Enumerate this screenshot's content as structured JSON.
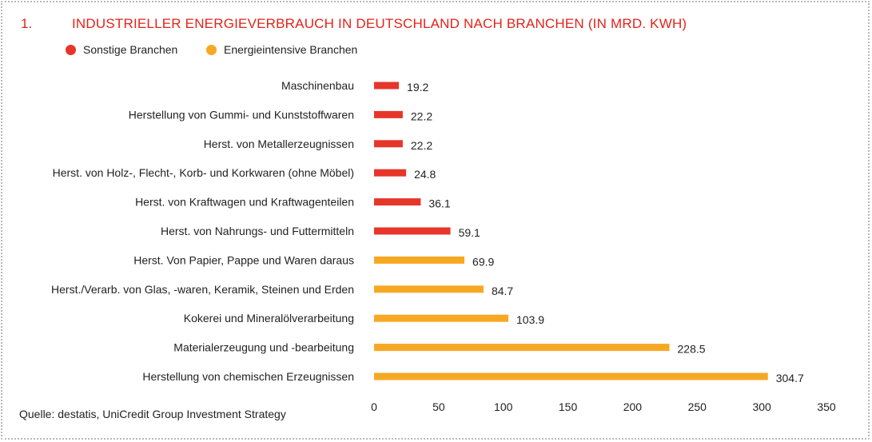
{
  "header": {
    "number": "1.",
    "title": "INDUSTRIELLER ENERGIEVERBRAUCH IN DEUTSCHLAND NACH BRANCHEN (IN MRD. KWH)"
  },
  "legend": [
    {
      "label": "Sonstige Branchen",
      "color": "#e8352a"
    },
    {
      "label": "Energieintensive Branchen",
      "color": "#f7a823"
    }
  ],
  "source": "Quelle: destatis, UniCredit Group Investment Strategy",
  "chart_data": {
    "type": "bar",
    "orientation": "horizontal",
    "categories": [
      "Maschinenbau",
      "Herstellung von Gummi- und Kunststoffwaren",
      "Herst. von Metallerzeugnissen",
      "Herst. von Holz-, Flecht-, Korb- und Korkwaren (ohne Möbel)",
      "Herst. von Kraftwagen und Kraftwagenteilen",
      "Herst. von Nahrungs- und Futtermitteln",
      "Herst. Von Papier, Pappe und Waren daraus",
      "Herst./Verarb. von Glas, -waren, Keramik, Steinen und Erden",
      "Kokerei und Mineralölverarbeitung",
      "Materialerzeugung und -bearbeitung",
      "Herstellung von chemischen Erzeugnissen"
    ],
    "values": [
      19.2,
      22.2,
      22.2,
      24.8,
      36.1,
      59.1,
      69.9,
      84.7,
      103.9,
      228.5,
      304.7
    ],
    "value_labels": [
      "19.2",
      "22.2",
      "22.2",
      "24.8",
      "36.1",
      "59.1",
      "69.9",
      "84.7",
      "103.9",
      "228.5",
      "304.7"
    ],
    "groups": [
      "Sonstige Branchen",
      "Sonstige Branchen",
      "Sonstige Branchen",
      "Sonstige Branchen",
      "Sonstige Branchen",
      "Sonstige Branchen",
      "Energieintensive Branchen",
      "Energieintensive Branchen",
      "Energieintensive Branchen",
      "Energieintensive Branchen",
      "Energieintensive Branchen"
    ],
    "group_colors": {
      "Sonstige Branchen": "#e8352a",
      "Energieintensive Branchen": "#f7a823"
    },
    "xlim": [
      0,
      350
    ],
    "xticks": [
      0,
      50,
      100,
      150,
      200,
      250,
      300,
      350
    ],
    "grid": false,
    "legend_position": "top-left"
  }
}
